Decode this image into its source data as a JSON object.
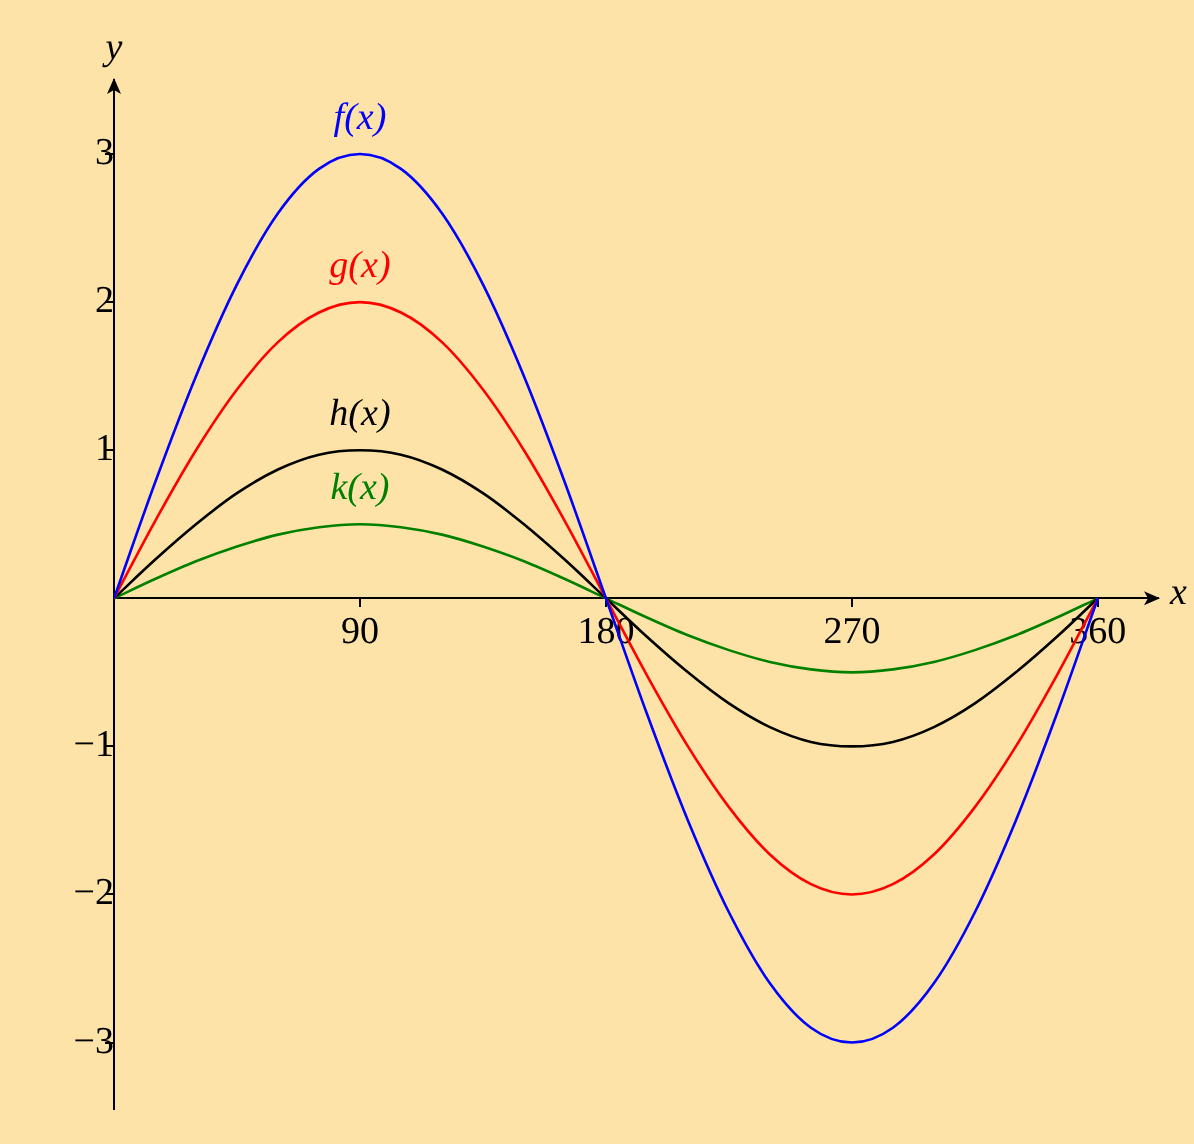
{
  "chart_data": {
    "type": "line",
    "xlabel": "x",
    "ylabel": "y",
    "xlim": [
      0,
      382
    ],
    "ylim": [
      -3.45,
      3.5
    ],
    "xticks": [
      90,
      180,
      270,
      360
    ],
    "yticks": [
      {
        "value": -3,
        "label": "−3"
      },
      {
        "value": -2,
        "label": "−2"
      },
      {
        "value": -1,
        "label": "−1"
      },
      1,
      2,
      3
    ],
    "grid": false,
    "legend": false,
    "marker": "none",
    "line_style": "solid",
    "x": [
      0,
      15,
      30,
      45,
      60,
      75,
      90,
      105,
      120,
      135,
      150,
      165,
      180,
      195,
      210,
      225,
      240,
      255,
      270,
      285,
      300,
      315,
      330,
      345,
      360
    ],
    "series": [
      {
        "name": "f(x)",
        "color": "#0000ff",
        "values": [
          0,
          0.78,
          1.5,
          2.12,
          2.6,
          2.9,
          3,
          2.9,
          2.6,
          2.12,
          1.5,
          0.78,
          0,
          -0.78,
          -1.5,
          -2.12,
          -2.6,
          -2.9,
          -3,
          -2.9,
          -2.6,
          -2.12,
          -1.5,
          -0.78,
          0
        ]
      },
      {
        "name": "g(x)",
        "color": "#ff0000",
        "values": [
          0,
          0.52,
          1,
          1.41,
          1.73,
          1.93,
          2,
          1.93,
          1.73,
          1.41,
          1,
          0.52,
          0,
          -0.52,
          -1,
          -1.41,
          -1.73,
          -1.93,
          -2,
          -1.93,
          -1.73,
          -1.41,
          -1,
          -0.52,
          0
        ]
      },
      {
        "name": "h(x)",
        "color": "#000000",
        "values": [
          0,
          0.26,
          0.5,
          0.71,
          0.87,
          0.97,
          1,
          0.97,
          0.87,
          0.71,
          0.5,
          0.26,
          0,
          -0.26,
          -0.5,
          -0.71,
          -0.87,
          -0.97,
          -1,
          -0.97,
          -0.87,
          -0.71,
          -0.5,
          -0.26,
          0
        ]
      },
      {
        "name": "k(x)",
        "color": "#008000",
        "values": [
          0,
          0.13,
          0.25,
          0.35,
          0.43,
          0.48,
          0.5,
          0.48,
          0.43,
          0.35,
          0.25,
          0.13,
          0,
          -0.13,
          -0.25,
          -0.35,
          -0.43,
          -0.48,
          -0.5,
          -0.48,
          -0.43,
          -0.35,
          -0.25,
          -0.13,
          0
        ]
      }
    ]
  }
}
